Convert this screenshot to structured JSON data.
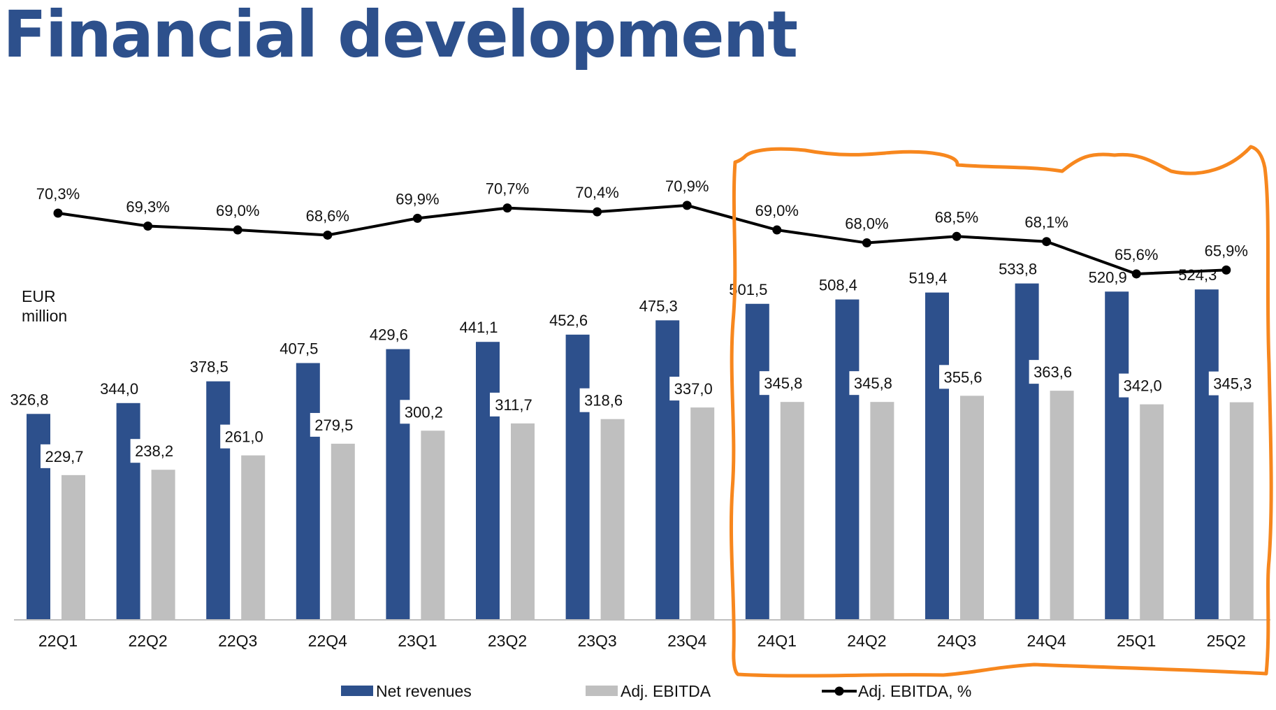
{
  "title": "Financial development",
  "unit_label": {
    "line1": "EUR",
    "line2": "million"
  },
  "colors": {
    "title": "#2d508c",
    "net_revenues": "#2d508c",
    "adj_ebitda": "#bfbfbf",
    "ebitda_pct": "#000000",
    "highlight": "#f7871e"
  },
  "chart_data": {
    "type": "bar",
    "title": "Financial development",
    "ylabel": "EUR million",
    "categories": [
      "22Q1",
      "22Q2",
      "22Q3",
      "22Q4",
      "23Q1",
      "23Q2",
      "23Q3",
      "23Q4",
      "24Q1",
      "24Q2",
      "24Q3",
      "24Q4",
      "25Q1",
      "25Q2"
    ],
    "series": [
      {
        "name": "Net revenues",
        "kind": "bar",
        "values": [
          326.8,
          344.0,
          378.5,
          407.5,
          429.6,
          441.1,
          452.6,
          475.3,
          501.5,
          508.4,
          519.4,
          533.8,
          520.9,
          524.3
        ],
        "labels": [
          "326,8",
          "344,0",
          "378,5",
          "407,5",
          "429,6",
          "441,1",
          "452,6",
          "475,3",
          "501,5",
          "508,4",
          "519,4",
          "533,8",
          "520,9",
          "524,3"
        ]
      },
      {
        "name": "Adj. EBITDA",
        "kind": "bar",
        "values": [
          229.7,
          238.2,
          261.0,
          279.5,
          300.2,
          311.7,
          318.6,
          337.0,
          345.8,
          345.8,
          355.6,
          363.6,
          342.0,
          345.3
        ],
        "labels": [
          "229,7",
          "238,2",
          "261,0",
          "279,5",
          "300,2",
          "311,7",
          "318,6",
          "337,0",
          "345,8",
          "345,8",
          "355,6",
          "363,6",
          "342,0",
          "345,3"
        ]
      },
      {
        "name": "Adj. EBITDA, %",
        "kind": "line",
        "values": [
          70.3,
          69.3,
          69.0,
          68.6,
          69.9,
          70.7,
          70.4,
          70.9,
          69.0,
          68.0,
          68.5,
          68.1,
          65.6,
          65.9
        ],
        "labels": [
          "70,3%",
          "69,3%",
          "69,0%",
          "68,6%",
          "69,9%",
          "70,7%",
          "70,4%",
          "70,9%",
          "69,0%",
          "68,0%",
          "68,5%",
          "68,1%",
          "65,6%",
          "65,9%"
        ]
      }
    ],
    "ylim": [
      0,
      560
    ],
    "line_ylim": [
      55,
      72
    ],
    "grid": false,
    "legend_position": "bottom",
    "highlight_categories": [
      "24Q1",
      "24Q2",
      "24Q3",
      "24Q4",
      "25Q1",
      "25Q2"
    ]
  }
}
